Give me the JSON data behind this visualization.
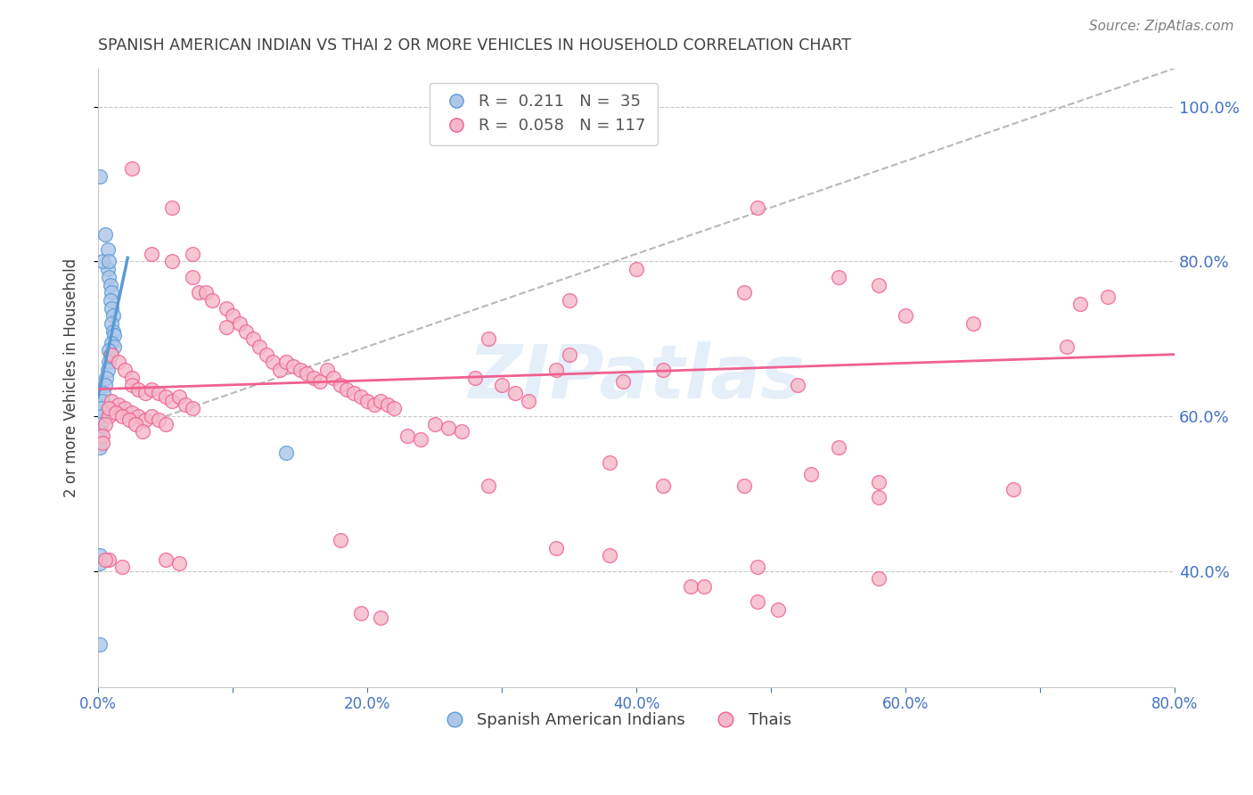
{
  "title": "SPANISH AMERICAN INDIAN VS THAI 2 OR MORE VEHICLES IN HOUSEHOLD CORRELATION CHART",
  "source": "Source: ZipAtlas.com",
  "ylabel": "2 or more Vehicles in Household",
  "xlim": [
    0.0,
    0.8
  ],
  "ylim": [
    0.25,
    1.05
  ],
  "right_yticks": [
    0.4,
    0.6,
    0.8,
    1.0
  ],
  "right_yticklabels": [
    "40.0%",
    "60.0%",
    "80.0%",
    "100.0%"
  ],
  "xticks": [
    0.0,
    0.1,
    0.2,
    0.3,
    0.4,
    0.5,
    0.6,
    0.7,
    0.8
  ],
  "xticklabels": [
    "0.0%",
    "",
    "20.0%",
    "",
    "40.0%",
    "",
    "60.0%",
    "",
    "80.0%"
  ],
  "blue_color": "#5b9bd5",
  "pink_color": "#f06090",
  "blue_fill": "#aec6e8",
  "pink_fill": "#f4b8c8",
  "title_color": "#404040",
  "source_color": "#808080",
  "axis_label_color": "#404040",
  "tick_color_right": "#4472c4",
  "tick_color_bottom": "#4472c4",
  "grid_color": "#c8c8c8",
  "watermark": "ZIPatlas",
  "blue_points": [
    [
      0.001,
      0.91
    ],
    [
      0.005,
      0.835
    ],
    [
      0.007,
      0.79
    ],
    [
      0.003,
      0.8
    ],
    [
      0.007,
      0.815
    ],
    [
      0.008,
      0.8
    ],
    [
      0.008,
      0.78
    ],
    [
      0.009,
      0.77
    ],
    [
      0.01,
      0.76
    ],
    [
      0.009,
      0.75
    ],
    [
      0.01,
      0.74
    ],
    [
      0.011,
      0.73
    ],
    [
      0.01,
      0.72
    ],
    [
      0.011,
      0.71
    ],
    [
      0.012,
      0.705
    ],
    [
      0.01,
      0.695
    ],
    [
      0.012,
      0.69
    ],
    [
      0.008,
      0.685
    ],
    [
      0.009,
      0.68
    ],
    [
      0.008,
      0.67
    ],
    [
      0.007,
      0.66
    ],
    [
      0.006,
      0.65
    ],
    [
      0.005,
      0.64
    ],
    [
      0.004,
      0.63
    ],
    [
      0.003,
      0.62
    ],
    [
      0.002,
      0.61
    ],
    [
      0.002,
      0.6
    ],
    [
      0.002,
      0.59
    ],
    [
      0.001,
      0.58
    ],
    [
      0.001,
      0.57
    ],
    [
      0.14,
      0.553
    ],
    [
      0.001,
      0.41
    ],
    [
      0.001,
      0.42
    ],
    [
      0.001,
      0.305
    ],
    [
      0.001,
      0.56
    ]
  ],
  "pink_points": [
    [
      0.025,
      0.92
    ],
    [
      0.055,
      0.87
    ],
    [
      0.04,
      0.81
    ],
    [
      0.055,
      0.8
    ],
    [
      0.07,
      0.81
    ],
    [
      0.07,
      0.78
    ],
    [
      0.075,
      0.76
    ],
    [
      0.08,
      0.76
    ],
    [
      0.085,
      0.75
    ],
    [
      0.095,
      0.74
    ],
    [
      0.1,
      0.73
    ],
    [
      0.105,
      0.72
    ],
    [
      0.11,
      0.71
    ],
    [
      0.115,
      0.7
    ],
    [
      0.12,
      0.69
    ],
    [
      0.125,
      0.68
    ],
    [
      0.13,
      0.67
    ],
    [
      0.135,
      0.66
    ],
    [
      0.14,
      0.67
    ],
    [
      0.145,
      0.665
    ],
    [
      0.15,
      0.66
    ],
    [
      0.155,
      0.655
    ],
    [
      0.16,
      0.65
    ],
    [
      0.165,
      0.645
    ],
    [
      0.17,
      0.66
    ],
    [
      0.175,
      0.65
    ],
    [
      0.18,
      0.64
    ],
    [
      0.185,
      0.635
    ],
    [
      0.19,
      0.63
    ],
    [
      0.195,
      0.625
    ],
    [
      0.2,
      0.62
    ],
    [
      0.205,
      0.615
    ],
    [
      0.21,
      0.62
    ],
    [
      0.215,
      0.615
    ],
    [
      0.22,
      0.61
    ],
    [
      0.01,
      0.68
    ],
    [
      0.015,
      0.67
    ],
    [
      0.02,
      0.66
    ],
    [
      0.025,
      0.65
    ],
    [
      0.025,
      0.64
    ],
    [
      0.03,
      0.635
    ],
    [
      0.035,
      0.63
    ],
    [
      0.04,
      0.635
    ],
    [
      0.045,
      0.63
    ],
    [
      0.05,
      0.625
    ],
    [
      0.055,
      0.62
    ],
    [
      0.06,
      0.625
    ],
    [
      0.065,
      0.615
    ],
    [
      0.07,
      0.61
    ],
    [
      0.01,
      0.62
    ],
    [
      0.015,
      0.615
    ],
    [
      0.02,
      0.61
    ],
    [
      0.025,
      0.605
    ],
    [
      0.03,
      0.6
    ],
    [
      0.035,
      0.595
    ],
    [
      0.04,
      0.6
    ],
    [
      0.045,
      0.595
    ],
    [
      0.05,
      0.59
    ],
    [
      0.008,
      0.6
    ],
    [
      0.005,
      0.59
    ],
    [
      0.003,
      0.575
    ],
    [
      0.003,
      0.565
    ],
    [
      0.008,
      0.61
    ],
    [
      0.013,
      0.605
    ],
    [
      0.018,
      0.6
    ],
    [
      0.023,
      0.595
    ],
    [
      0.028,
      0.59
    ],
    [
      0.033,
      0.58
    ],
    [
      0.28,
      0.65
    ],
    [
      0.3,
      0.64
    ],
    [
      0.31,
      0.63
    ],
    [
      0.32,
      0.62
    ],
    [
      0.25,
      0.59
    ],
    [
      0.26,
      0.585
    ],
    [
      0.27,
      0.58
    ],
    [
      0.23,
      0.575
    ],
    [
      0.24,
      0.57
    ],
    [
      0.35,
      0.75
    ],
    [
      0.4,
      0.79
    ],
    [
      0.42,
      0.66
    ],
    [
      0.48,
      0.76
    ],
    [
      0.52,
      0.64
    ],
    [
      0.55,
      0.56
    ],
    [
      0.6,
      0.73
    ],
    [
      0.65,
      0.72
    ],
    [
      0.72,
      0.69
    ],
    [
      0.38,
      0.54
    ],
    [
      0.42,
      0.51
    ],
    [
      0.48,
      0.51
    ],
    [
      0.53,
      0.525
    ],
    [
      0.58,
      0.515
    ],
    [
      0.34,
      0.43
    ],
    [
      0.38,
      0.42
    ],
    [
      0.44,
      0.38
    ],
    [
      0.49,
      0.405
    ],
    [
      0.18,
      0.44
    ],
    [
      0.008,
      0.415
    ],
    [
      0.45,
      0.38
    ],
    [
      0.49,
      0.36
    ],
    [
      0.505,
      0.35
    ],
    [
      0.195,
      0.345
    ],
    [
      0.21,
      0.34
    ],
    [
      0.58,
      0.39
    ],
    [
      0.05,
      0.415
    ],
    [
      0.095,
      0.715
    ],
    [
      0.29,
      0.7
    ],
    [
      0.58,
      0.77
    ],
    [
      0.49,
      0.87
    ],
    [
      0.34,
      0.66
    ],
    [
      0.39,
      0.645
    ],
    [
      0.29,
      0.51
    ],
    [
      0.58,
      0.495
    ],
    [
      0.68,
      0.505
    ],
    [
      0.73,
      0.745
    ],
    [
      0.018,
      0.405
    ],
    [
      0.005,
      0.415
    ],
    [
      0.06,
      0.41
    ],
    [
      0.35,
      0.68
    ],
    [
      0.75,
      0.755
    ],
    [
      0.55,
      0.78
    ]
  ]
}
